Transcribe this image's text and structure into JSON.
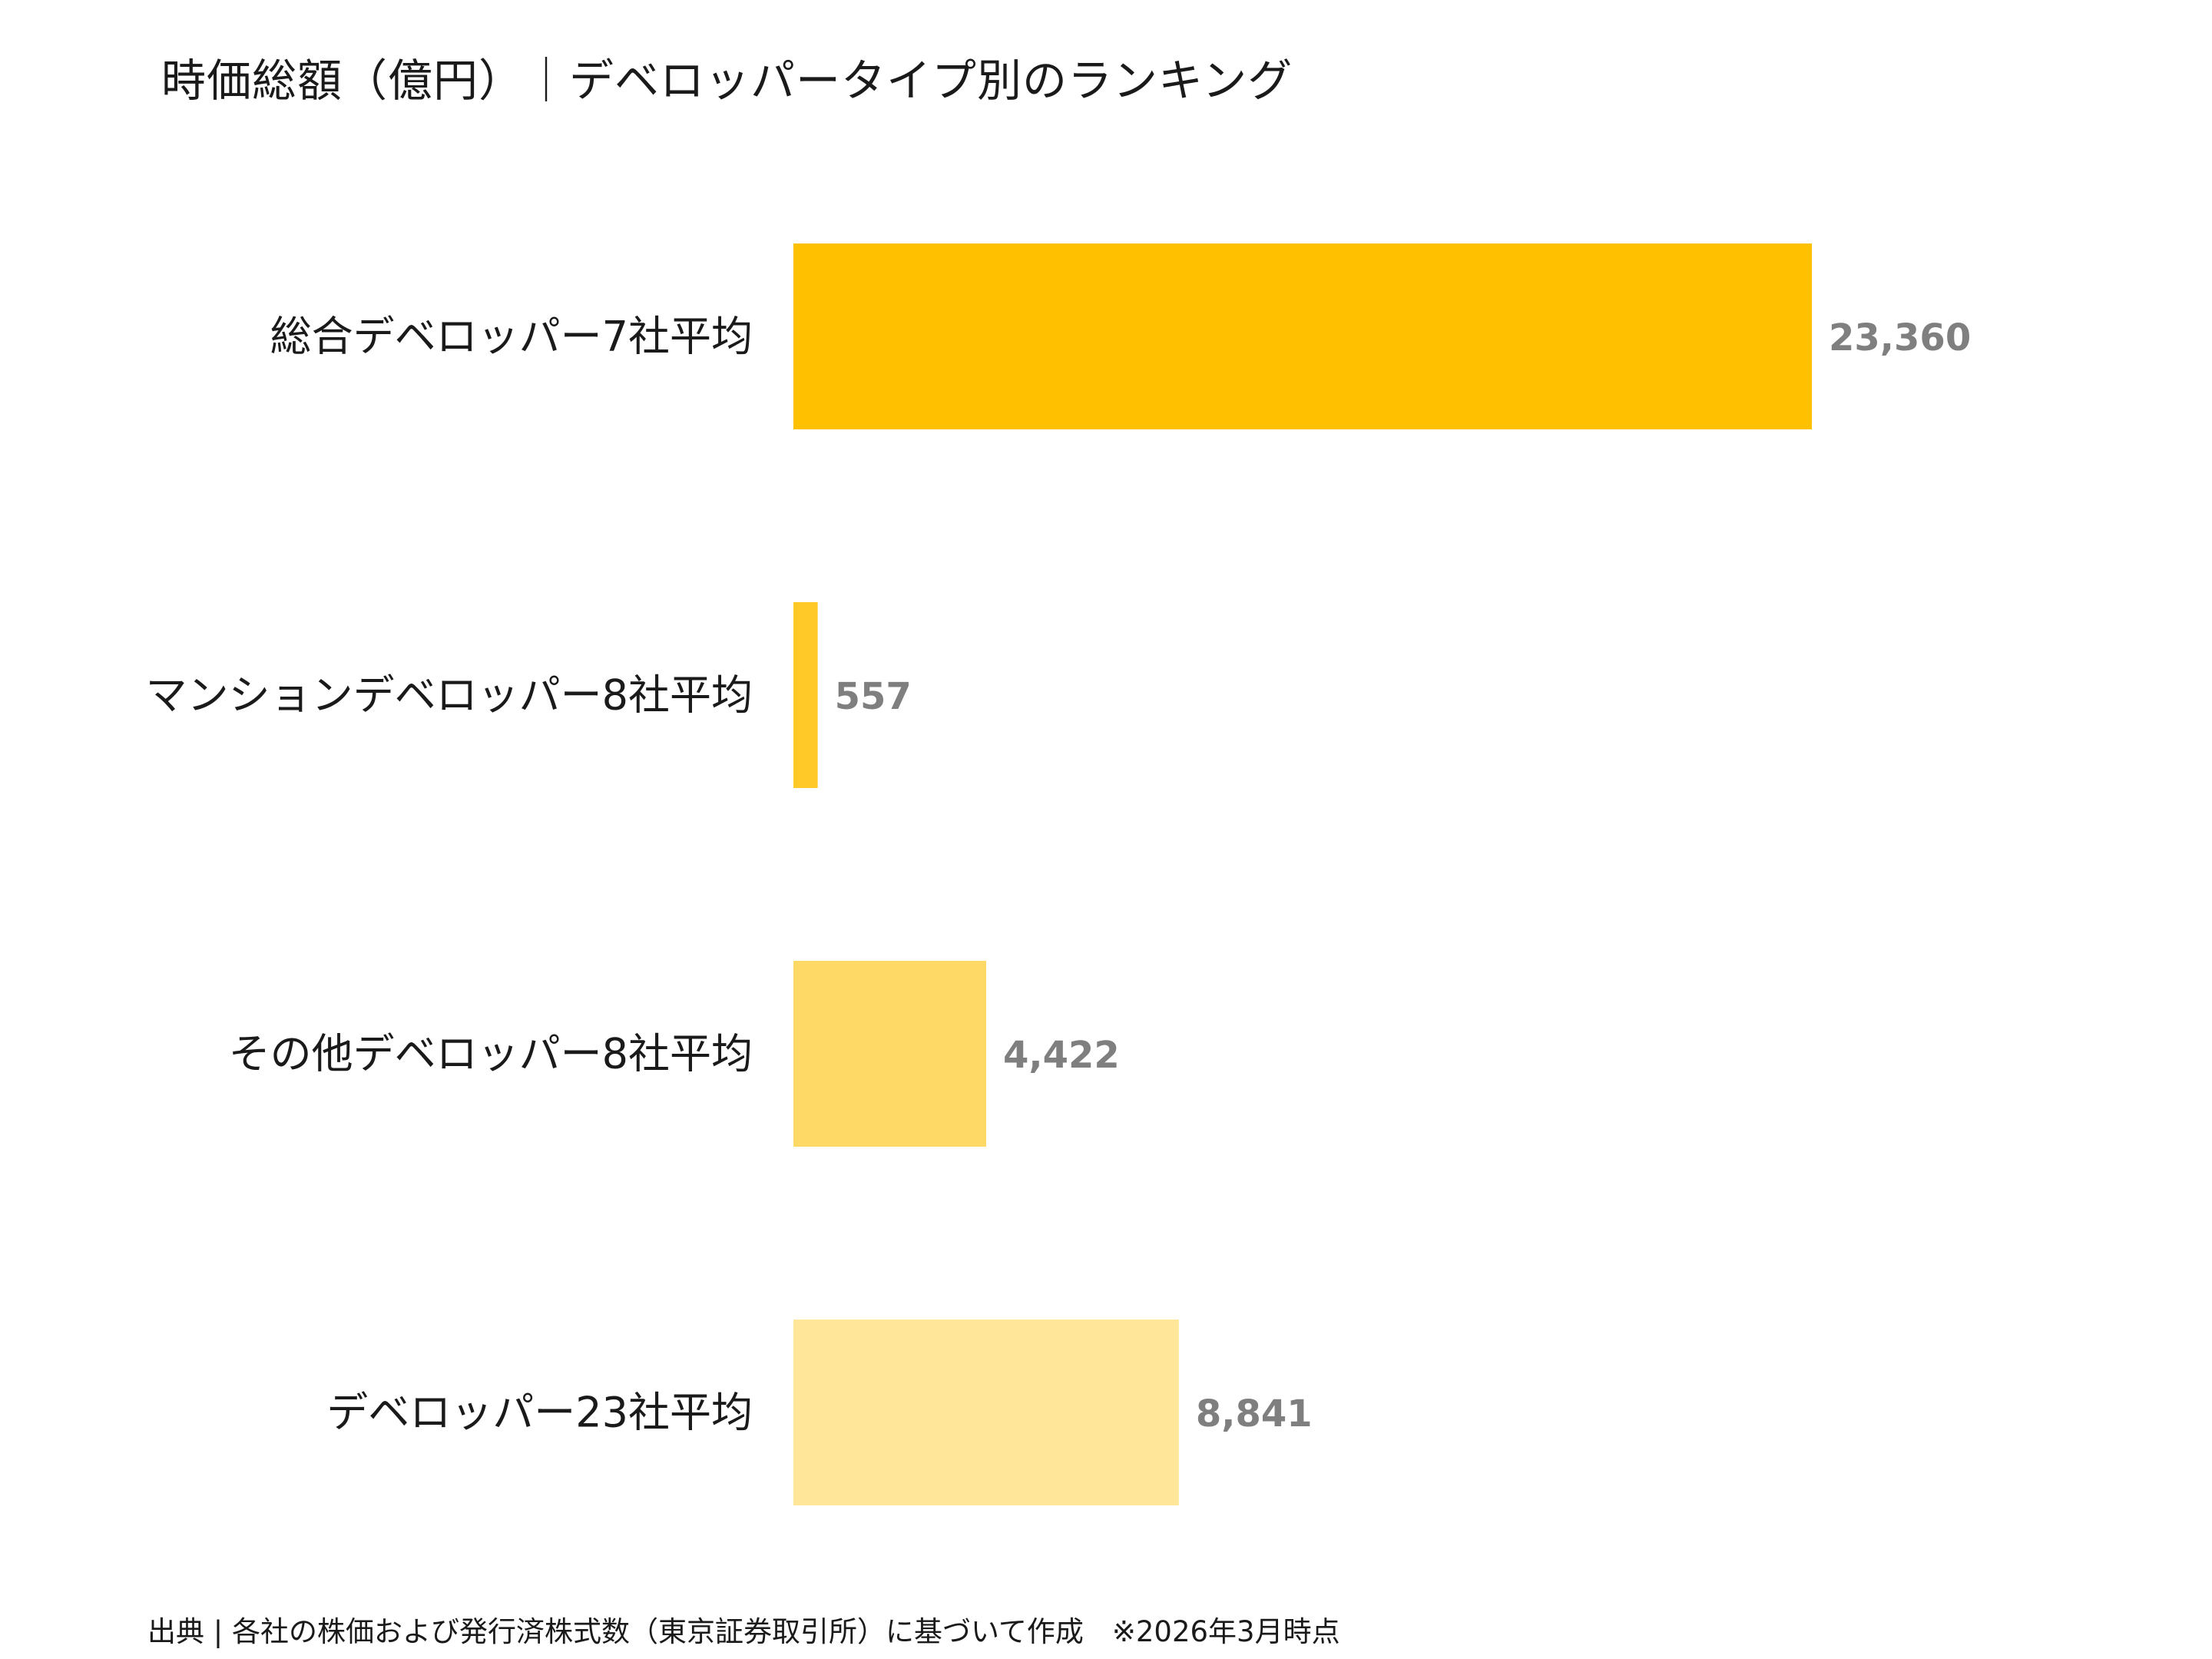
{
  "chart_data": {
    "type": "bar",
    "orientation": "horizontal",
    "title": "時価総額（億円）｜デベロッパータイプ別のランキング",
    "categories": [
      "総合デベロッパー7社平均",
      "マンションデベロッパー8社平均",
      "その他デベロッパー8社平均",
      "デベロッパー23社平均"
    ],
    "values": [
      23360,
      557,
      4422,
      8841
    ],
    "value_labels": [
      "23,360",
      "557",
      "4,422",
      "8,841"
    ],
    "colors": [
      "#FFC000",
      "#FFC928",
      "#FFD966",
      "#FFE699"
    ],
    "value_label_color": "#7F7F7F",
    "xlim": [
      0,
      26000
    ],
    "grid": false,
    "legend": "none",
    "xlabel": "",
    "ylabel": ""
  },
  "footer": {
    "source": "出典 | 各社の株価および発行済株式数（東京証券取引所）に基づいて作成　※2026年3月時点"
  }
}
